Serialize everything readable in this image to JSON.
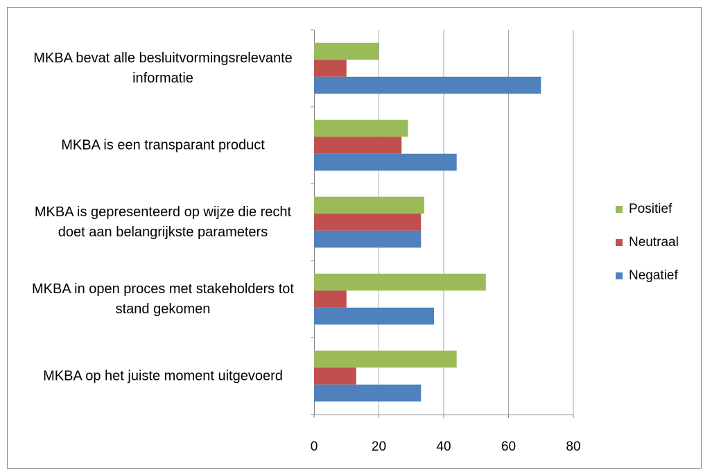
{
  "chart_data": {
    "type": "bar",
    "orientation": "horizontal",
    "categories": [
      "MKBA bevat alle besluitvormingsrelevante informatie",
      "MKBA is een transparant product",
      "MKBA is gepresenteerd op wijze die recht doet aan belangrijkste parameters",
      "MKBA in open proces met stakeholders tot stand gekomen",
      "MKBA op het juiste moment uitgevoerd"
    ],
    "series": [
      {
        "name": "Positief",
        "color": "#9bbb59",
        "values": [
          20,
          29,
          34,
          53,
          44
        ]
      },
      {
        "name": "Neutraal",
        "color": "#c0504d",
        "values": [
          10,
          27,
          33,
          10,
          13
        ]
      },
      {
        "name": "Negatief",
        "color": "#4f81bd",
        "values": [
          70,
          44,
          33,
          37,
          33
        ]
      }
    ],
    "xlim": [
      0,
      80
    ],
    "xticks": [
      0,
      20,
      40,
      60,
      80
    ],
    "grid": true,
    "legend": "right"
  }
}
